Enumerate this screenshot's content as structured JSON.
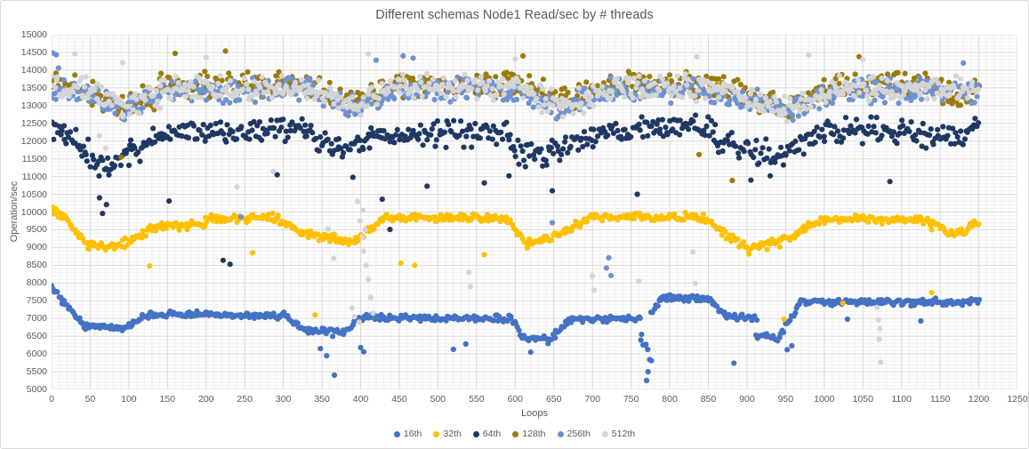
{
  "chart_data": {
    "type": "scatter",
    "title": "Different schemas Node1 Read/sec by # threads",
    "xlabel": "Loops",
    "ylabel": "Operation/sec",
    "xlim": [
      0,
      1250
    ],
    "ylim": [
      5000,
      15000
    ],
    "x_major_step": 50,
    "x_minor_step": 10,
    "y_major_step": 500,
    "y_minor_step": 100,
    "grid": "major-and-minor",
    "legend_position": "bottom-center",
    "data_x_range": [
      0,
      1200
    ],
    "series": [
      {
        "name": "16th",
        "color": "#4472C4",
        "band_segments": [
          [
            0,
            14,
            7950,
            7500,
            110
          ],
          [
            14,
            40,
            7500,
            6850,
            110
          ],
          [
            40,
            92,
            6800,
            6700,
            110
          ],
          [
            92,
            128,
            6700,
            7120,
            110
          ],
          [
            128,
            300,
            7120,
            7080,
            110
          ],
          [
            300,
            332,
            7080,
            6620,
            110
          ],
          [
            332,
            378,
            6620,
            6600,
            130
          ],
          [
            378,
            398,
            6600,
            7020,
            110
          ],
          [
            398,
            595,
            7030,
            7000,
            110
          ],
          [
            595,
            610,
            7000,
            6450,
            110
          ],
          [
            610,
            645,
            6450,
            6400,
            120
          ],
          [
            645,
            668,
            6400,
            6950,
            110
          ],
          [
            668,
            762,
            6960,
            6980,
            110
          ],
          [
            762,
            776,
            6400,
            5800,
            420
          ],
          [
            776,
            788,
            7200,
            7500,
            110
          ],
          [
            788,
            852,
            7580,
            7550,
            110
          ],
          [
            852,
            872,
            7550,
            7060,
            110
          ],
          [
            872,
            912,
            7060,
            6980,
            110
          ],
          [
            912,
            942,
            6520,
            6420,
            120
          ],
          [
            942,
            968,
            6480,
            7380,
            110
          ],
          [
            968,
            1200,
            7460,
            7470,
            120
          ]
        ],
        "outliers": [
          [
            348,
            6150
          ],
          [
            356,
            5950
          ],
          [
            366,
            5400
          ],
          [
            400,
            6180
          ],
          [
            404,
            6060
          ],
          [
            520,
            6130
          ],
          [
            536,
            6280
          ],
          [
            620,
            6050
          ],
          [
            770,
            5250
          ],
          [
            772,
            5500
          ],
          [
            883,
            5740
          ],
          [
            952,
            6120
          ],
          [
            958,
            6230
          ],
          [
            1030,
            6980
          ],
          [
            1125,
            6930
          ]
        ]
      },
      {
        "name": "32th",
        "color": "#FFC000",
        "band_segments": [
          [
            0,
            16,
            10050,
            9900,
            140
          ],
          [
            16,
            48,
            9900,
            9050,
            150
          ],
          [
            48,
            82,
            9050,
            9000,
            150
          ],
          [
            82,
            130,
            9000,
            9520,
            140
          ],
          [
            130,
            200,
            9550,
            9680,
            140
          ],
          [
            200,
            290,
            9800,
            9850,
            140
          ],
          [
            290,
            330,
            9850,
            9380,
            150
          ],
          [
            330,
            392,
            9380,
            9180,
            170
          ],
          [
            392,
            428,
            9180,
            9780,
            140
          ],
          [
            428,
            588,
            9850,
            9820,
            140
          ],
          [
            588,
            615,
            9820,
            9100,
            150
          ],
          [
            615,
            655,
            9100,
            9350,
            160
          ],
          [
            655,
            698,
            9350,
            9820,
            140
          ],
          [
            698,
            842,
            9880,
            9850,
            140
          ],
          [
            842,
            902,
            9850,
            8950,
            160
          ],
          [
            902,
            942,
            8950,
            9150,
            160
          ],
          [
            942,
            995,
            9150,
            9750,
            140
          ],
          [
            995,
            1125,
            9800,
            9780,
            140
          ],
          [
            1125,
            1168,
            9780,
            9350,
            150
          ],
          [
            1168,
            1200,
            9350,
            9680,
            140
          ]
        ],
        "outliers": [
          [
            127,
            8480
          ],
          [
            260,
            8850
          ],
          [
            341,
            7100
          ],
          [
            452,
            8560
          ],
          [
            470,
            8500
          ],
          [
            560,
            8800
          ],
          [
            948,
            6980
          ],
          [
            1024,
            7430
          ],
          [
            1139,
            7730
          ]
        ]
      },
      {
        "name": "64th",
        "color": "#1F3864",
        "band_segments": [
          [
            0,
            16,
            12400,
            12250,
            420
          ],
          [
            16,
            44,
            12250,
            11750,
            420
          ],
          [
            44,
            72,
            11750,
            11150,
            430
          ],
          [
            72,
            102,
            11150,
            11650,
            420
          ],
          [
            102,
            140,
            11650,
            12150,
            420
          ],
          [
            140,
            328,
            12250,
            12280,
            430
          ],
          [
            328,
            372,
            12280,
            11750,
            430
          ],
          [
            372,
            412,
            11750,
            11950,
            430
          ],
          [
            412,
            595,
            12150,
            12250,
            430
          ],
          [
            595,
            648,
            11700,
            11650,
            420
          ],
          [
            648,
            700,
            11650,
            12150,
            420
          ],
          [
            700,
            788,
            12200,
            12450,
            420
          ],
          [
            788,
            858,
            12450,
            12350,
            420
          ],
          [
            858,
            945,
            12000,
            11600,
            430
          ],
          [
            945,
            1002,
            11600,
            12200,
            420
          ],
          [
            1002,
            1098,
            12300,
            12250,
            430
          ],
          [
            1098,
            1158,
            12250,
            12050,
            420
          ],
          [
            1158,
            1200,
            12050,
            12350,
            420
          ]
        ],
        "outliers": [
          [
            62,
            10400
          ],
          [
            66,
            9960
          ],
          [
            71,
            10210
          ],
          [
            152,
            10310
          ],
          [
            222,
            8640
          ],
          [
            231,
            8530
          ],
          [
            292,
            11050
          ],
          [
            390,
            10980
          ],
          [
            428,
            10360
          ],
          [
            438,
            9510
          ],
          [
            486,
            10730
          ],
          [
            560,
            10820
          ],
          [
            592,
            11020
          ],
          [
            648,
            10600
          ],
          [
            758,
            10500
          ],
          [
            905,
            10900
          ],
          [
            930,
            11020
          ],
          [
            1085,
            10860
          ]
        ]
      },
      {
        "name": "128th",
        "color": "#9C7B0B",
        "band_segments": [
          [
            0,
            40,
            13600,
            13500,
            420
          ],
          [
            40,
            92,
            13500,
            12950,
            420
          ],
          [
            92,
            140,
            12950,
            13350,
            420
          ],
          [
            140,
            330,
            13550,
            13600,
            430
          ],
          [
            330,
            382,
            13600,
            13150,
            430
          ],
          [
            382,
            425,
            13150,
            13450,
            420
          ],
          [
            425,
            598,
            13600,
            13620,
            430
          ],
          [
            598,
            660,
            13620,
            13150,
            430
          ],
          [
            660,
            722,
            13150,
            13500,
            420
          ],
          [
            722,
            868,
            13600,
            13550,
            430
          ],
          [
            868,
            948,
            13550,
            12950,
            430
          ],
          [
            948,
            1008,
            12950,
            13450,
            420
          ],
          [
            1008,
            1128,
            13550,
            13600,
            430
          ],
          [
            1128,
            1172,
            13600,
            13250,
            420
          ],
          [
            1172,
            1200,
            13250,
            13520,
            420
          ]
        ],
        "outliers": [
          [
            90,
            11550
          ],
          [
            160,
            14470
          ],
          [
            225,
            14540
          ],
          [
            610,
            14400
          ],
          [
            838,
            11620
          ],
          [
            881,
            10890
          ],
          [
            1045,
            14380
          ]
        ]
      },
      {
        "name": "256th",
        "color": "#6E93D3",
        "band_segments": [
          [
            0,
            48,
            13450,
            13350,
            400
          ],
          [
            48,
            92,
            13350,
            12850,
            400
          ],
          [
            92,
            140,
            12850,
            13250,
            400
          ],
          [
            140,
            330,
            13400,
            13450,
            410
          ],
          [
            330,
            390,
            13450,
            12950,
            410
          ],
          [
            390,
            430,
            12950,
            13300,
            400
          ],
          [
            430,
            598,
            13450,
            13450,
            410
          ],
          [
            598,
            660,
            13450,
            12950,
            410
          ],
          [
            660,
            722,
            12950,
            13350,
            400
          ],
          [
            722,
            868,
            13450,
            13400,
            410
          ],
          [
            868,
            948,
            13400,
            12850,
            410
          ],
          [
            948,
            1008,
            12850,
            13300,
            400
          ],
          [
            1008,
            1200,
            13450,
            13420,
            410
          ]
        ],
        "outliers": [
          [
            2,
            14480
          ],
          [
            6,
            14430
          ],
          [
            9,
            14060
          ],
          [
            245,
            9860
          ],
          [
            420,
            14280
          ],
          [
            455,
            14400
          ],
          [
            468,
            14340
          ],
          [
            648,
            9700
          ],
          [
            718,
            8420
          ],
          [
            721,
            8710
          ],
          [
            724,
            8210
          ],
          [
            1180,
            14200
          ]
        ]
      },
      {
        "name": "512th",
        "color": "#D5D5D5",
        "band_segments": [
          [
            0,
            40,
            13550,
            13450,
            420
          ],
          [
            40,
            92,
            13450,
            12900,
            430
          ],
          [
            92,
            140,
            12900,
            13300,
            420
          ],
          [
            140,
            330,
            13450,
            13500,
            430
          ],
          [
            330,
            390,
            13500,
            13000,
            430
          ],
          [
            390,
            430,
            13000,
            13350,
            420
          ],
          [
            430,
            598,
            13500,
            13500,
            430
          ],
          [
            598,
            660,
            13500,
            13000,
            430
          ],
          [
            660,
            722,
            13000,
            13400,
            420
          ],
          [
            722,
            868,
            13500,
            13450,
            430
          ],
          [
            868,
            948,
            13450,
            12900,
            430
          ],
          [
            948,
            1008,
            12900,
            13350,
            420
          ],
          [
            1008,
            1200,
            13500,
            13450,
            430
          ]
        ],
        "outliers": [
          [
            30,
            14460
          ],
          [
            62,
            12150
          ],
          [
            70,
            11800
          ],
          [
            92,
            14210
          ],
          [
            200,
            14360
          ],
          [
            240,
            10710
          ],
          [
            287,
            11150
          ],
          [
            358,
            9520
          ],
          [
            365,
            8700
          ],
          [
            389,
            7300
          ],
          [
            392,
            7050
          ],
          [
            396,
            10300
          ],
          [
            398,
            6900
          ],
          [
            399,
            9750
          ],
          [
            402,
            9300
          ],
          [
            403,
            10050
          ],
          [
            404,
            8900
          ],
          [
            406,
            9500
          ],
          [
            407,
            8500
          ],
          [
            410,
            8100
          ],
          [
            410,
            14450
          ],
          [
            413,
            7600
          ],
          [
            416,
            7150
          ],
          [
            540,
            8300
          ],
          [
            542,
            7900
          ],
          [
            600,
            14310
          ],
          [
            700,
            8200
          ],
          [
            702,
            7800
          ],
          [
            760,
            8050
          ],
          [
            830,
            8880
          ],
          [
            833,
            7990
          ],
          [
            835,
            14380
          ],
          [
            980,
            14420
          ],
          [
            1050,
            14300
          ],
          [
            1068,
            7310
          ],
          [
            1070,
            6960
          ],
          [
            1072,
            6710
          ],
          [
            1071,
            6410
          ],
          [
            1073,
            5770
          ]
        ]
      }
    ]
  }
}
